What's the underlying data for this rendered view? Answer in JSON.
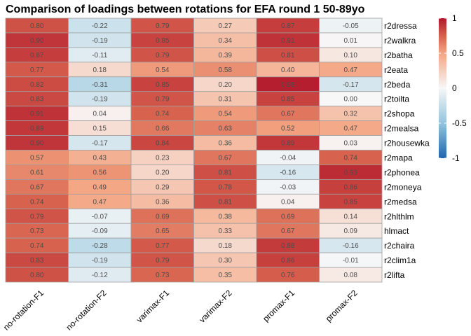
{
  "chart_data": {
    "type": "heatmap",
    "title": "Comparison of loadings between rotations for EFA round 1 50-89yo",
    "columns": [
      "no-rotation-F1",
      "no-rotation-F2",
      "varimax-F1",
      "varimax-F2",
      "promax-F1",
      "promax-F2"
    ],
    "rows": [
      "r2dressa",
      "r2walkra",
      "r2batha",
      "r2eata",
      "r2beda",
      "r2toilta",
      "r2shopa",
      "r2mealsa",
      "r2housewka",
      "r2mapa",
      "r2phonea",
      "r2moneya",
      "r2medsa",
      "r2hlthlm",
      "hlmact",
      "r2chaira",
      "r2clim1a",
      "r2lifta"
    ],
    "values": [
      [
        0.8,
        -0.22,
        0.79,
        0.27,
        0.87,
        -0.05
      ],
      [
        0.9,
        -0.19,
        0.85,
        0.34,
        0.91,
        0.01
      ],
      [
        0.87,
        -0.11,
        0.79,
        0.39,
        0.81,
        0.1
      ],
      [
        0.77,
        0.18,
        0.54,
        0.58,
        0.4,
        0.47
      ],
      [
        0.82,
        -0.31,
        0.85,
        0.2,
        0.98,
        -0.17
      ],
      [
        0.83,
        -0.19,
        0.79,
        0.31,
        0.85,
        -0.0
      ],
      [
        0.91,
        0.04,
        0.74,
        0.54,
        0.67,
        0.32
      ],
      [
        0.89,
        0.15,
        0.66,
        0.63,
        0.52,
        0.47
      ],
      [
        0.9,
        -0.17,
        0.84,
        0.36,
        0.89,
        0.03
      ],
      [
        0.57,
        0.43,
        0.23,
        0.67,
        -0.04,
        0.74
      ],
      [
        0.61,
        0.56,
        0.2,
        0.81,
        -0.16,
        0.93
      ],
      [
        0.67,
        0.49,
        0.29,
        0.78,
        -0.03,
        0.86
      ],
      [
        0.74,
        0.47,
        0.36,
        0.81,
        0.04,
        0.85
      ],
      [
        0.79,
        -0.07,
        0.69,
        0.38,
        0.69,
        0.14
      ],
      [
        0.73,
        -0.09,
        0.65,
        0.33,
        0.67,
        0.09
      ],
      [
        0.74,
        -0.28,
        0.77,
        0.18,
        0.88,
        -0.16
      ],
      [
        0.83,
        -0.19,
        0.79,
        0.3,
        0.86,
        -0.01
      ],
      [
        0.8,
        -0.12,
        0.73,
        0.35,
        0.76,
        0.08
      ]
    ],
    "value_range": [
      -1,
      1
    ],
    "legend": {
      "position": "right",
      "ticks": [
        1,
        0.5,
        0,
        -0.5,
        -1
      ],
      "tick_labels": [
        "1",
        "0.5",
        "0",
        "-0.5",
        "-1"
      ]
    },
    "colors": {
      "low": "#2166AC",
      "mid": "#F7F7F7",
      "high": "#B2182B",
      "grid": "#A0A0A0"
    }
  }
}
